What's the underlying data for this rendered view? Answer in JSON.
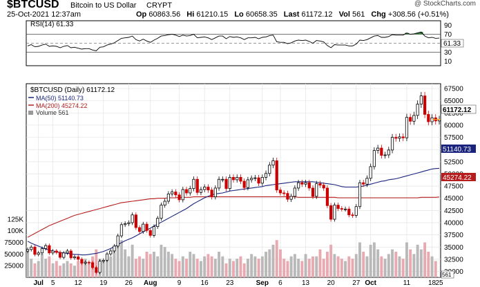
{
  "header": {
    "symbol": "$BTCUSD",
    "name": "Bitcoin to US Dollar",
    "exchange": "CRYPT",
    "date": "25-Oct-2021 12:37am",
    "watermark": "@ StockCharts.com",
    "open_label": "Op",
    "open_value": "60863.56",
    "high_label": "Hi",
    "high_value": "61210.15",
    "low_label": "Lo",
    "low_value": "60658.35",
    "last_label": "Last",
    "last_value": "61172.12",
    "vol_label": "Vol",
    "vol_value": "561",
    "chg_label": "Chg",
    "chg_value": "+308.56 (+0.51%)"
  },
  "rsi_panel": {
    "legend": "RSI(14) 61.33",
    "value_tag": "61.33",
    "levels": [
      70,
      50,
      30
    ],
    "ticks": [
      "90",
      "70",
      "50",
      "30",
      "10"
    ]
  },
  "price_panel": {
    "legend_main": "$BTCUSD (Daily) 61172.12",
    "legend_ma50": "MA(50) 51140.73",
    "legend_ma200": "MA(200) 45274.22",
    "legend_volume": "Volume 561",
    "tag_last": "61172.12",
    "tag_ma50": "51140.73",
    "tag_ma200": "45274.22",
    "tag_volume": "561",
    "price_ticks": [
      "67500",
      "65000",
      "62500",
      "60000",
      "57500",
      "55000",
      "52500",
      "50000",
      "47500",
      "45000",
      "42500",
      "40000",
      "37500",
      "35000",
      "32500",
      "30000"
    ],
    "volume_ticks": [
      "125K",
      "100K",
      "75000",
      "50000",
      "25000"
    ],
    "date_labels": [
      "Jul",
      "5",
      "12",
      "19",
      "26",
      "Aug",
      "9",
      "16",
      "23",
      "Sep",
      "6",
      "13",
      "20",
      "27",
      "Oct",
      "11",
      "18",
      "25"
    ]
  },
  "colors": {
    "up_candle": "#000000",
    "down_candle": "#cc0000",
    "ma50": "#1a237e",
    "ma200": "#b71c1c",
    "volume_up": "#b9b9b9",
    "volume_down": "#e8aab0",
    "rsi_line": "#000000",
    "rsi_fill": "#2e7d32"
  },
  "chart_data": {
    "type": "candlestick",
    "title": "$BTCUSD Bitcoin to US Dollar (Daily)",
    "x_start": "2021-06-28",
    "x_end": "2021-10-25",
    "ylim": [
      28800,
      68500
    ],
    "volume_ylim": [
      0,
      150000
    ],
    "rsi_ylim": [
      0,
      100
    ],
    "close_series": [
      34500,
      35000,
      33500,
      33800,
      34700,
      35300,
      33800,
      34200,
      33900,
      32900,
      33800,
      34200,
      32800,
      33000,
      32500,
      31700,
      31900,
      31800,
      30800,
      29800,
      32100,
      32300,
      33600,
      34200,
      35200,
      37300,
      39600,
      39800,
      40000,
      41600,
      39000,
      38200,
      39700,
      38400,
      37400,
      39200,
      40900,
      43600,
      44400,
      45900,
      46300,
      45700,
      44700,
      46800,
      46100,
      47000,
      48900,
      46200,
      46800,
      47300,
      46700,
      45300,
      47100,
      48900,
      48900,
      47000,
      49300,
      48800,
      49300,
      48500,
      47200,
      48800,
      49100,
      49200,
      48100,
      49300,
      50100,
      51800,
      52700,
      46700,
      46100,
      46000,
      44800,
      45400,
      47100,
      48200,
      47900,
      48200,
      47100,
      45400,
      48000,
      47700,
      47100,
      43500,
      40700,
      43600,
      42900,
      42800,
      42800,
      41600,
      41500,
      43300,
      48200,
      47900,
      49100,
      51500,
      54800,
      55300,
      53800,
      53900,
      54900,
      57500,
      57300,
      57600,
      57400,
      61600,
      60800,
      62000,
      64300,
      66000,
      62200,
      60700,
      61500,
      60860,
      61172
    ],
    "ma50_series": [
      36200,
      35800,
      35500,
      35200,
      34900,
      34600,
      34400,
      34200,
      34000,
      33900,
      33800,
      33700,
      33600,
      33500,
      33500,
      33400,
      33400,
      33500,
      33600,
      33700,
      33900,
      34100,
      34400,
      34700,
      35100,
      35500,
      35900,
      36300,
      36600,
      36900,
      37300,
      37700,
      38100,
      38500,
      38900,
      39300,
      39700,
      40100,
      40500,
      40900,
      41300,
      41700,
      42100,
      42500,
      42900,
      43400,
      43900,
      44300,
      44700,
      45100,
      45400,
      45700,
      45900,
      46000,
      46100,
      46300,
      46500,
      46600,
      46700,
      46800,
      46900,
      47000,
      47100,
      47200,
      47300,
      47400,
      47600,
      47700,
      47800,
      47900,
      48000,
      48100,
      48200,
      48300,
      48400,
      48400,
      48400,
      48400,
      48400,
      48400,
      48300,
      48200,
      48100,
      48000,
      47900,
      47800,
      47600,
      47400,
      47300,
      47300,
      47300,
      47300,
      47400,
      47500,
      47700,
      47900,
      48100,
      48300,
      48500,
      48600,
      48800,
      48900,
      49000,
      49200,
      49400,
      49600,
      49800,
      50000,
      50200,
      50400,
      50600,
      50800,
      51000,
      51100,
      51140
    ],
    "ma200_series": [
      37000,
      37400,
      37800,
      38200,
      38600,
      39000,
      39400,
      39700,
      40000,
      40300,
      40600,
      40900,
      41200,
      41500,
      41700,
      41900,
      42100,
      42300,
      42500,
      42700,
      42900,
      43100,
      43300,
      43500,
      43700,
      43900,
      44100,
      44200,
      44300,
      44400,
      44500,
      44600,
      44700,
      44800,
      44900,
      44900,
      45000,
      45000,
      45000,
      45100,
      45100,
      45100,
      45200,
      45200,
      45200,
      45200,
      45300,
      45300,
      45300,
      45300,
      45300,
      45300,
      45300,
      45300,
      45300,
      45300,
      45300,
      45300,
      45300,
      45300,
      45300,
      45300,
      45300,
      45300,
      45300,
      45300,
      45300,
      45300,
      45300,
      45300,
      45300,
      45300,
      45300,
      45300,
      45300,
      45200,
      45200,
      45200,
      45200,
      45200,
      45200,
      45200,
      45200,
      45200,
      45200,
      45200,
      45100,
      45100,
      45100,
      45100,
      45100,
      45100,
      45100,
      45100,
      45100,
      45100,
      45100,
      45100,
      45100,
      45100,
      45100,
      45100,
      45100,
      45100,
      45100,
      45100,
      45100,
      45100,
      45100,
      45200,
      45200,
      45200,
      45200,
      45200,
      45274
    ],
    "volume_series": [
      60000,
      40000,
      30000,
      35000,
      50000,
      40000,
      45000,
      30000,
      35000,
      25000,
      30000,
      35000,
      30000,
      25000,
      35000,
      30000,
      40000,
      30000,
      45000,
      60000,
      40000,
      35000,
      50000,
      45000,
      60000,
      70000,
      80000,
      60000,
      45000,
      70000,
      40000,
      45000,
      40000,
      55000,
      50000,
      55000,
      45000,
      70000,
      65000,
      55000,
      50000,
      40000,
      35000,
      45000,
      40000,
      55000,
      50000,
      40000,
      35000,
      45000,
      50000,
      45000,
      40000,
      55000,
      45000,
      30000,
      40000,
      35000,
      40000,
      45000,
      30000,
      40000,
      50000,
      45000,
      40000,
      45000,
      55000,
      60000,
      70000,
      80000,
      60000,
      40000,
      35000,
      45000,
      50000,
      40000,
      35000,
      50000,
      40000,
      45000,
      45000,
      60000,
      40000,
      55000,
      70000,
      50000,
      45000,
      40000,
      35000,
      45000,
      40000,
      50000,
      75000,
      55000,
      45000,
      70000,
      75000,
      60000,
      45000,
      40000,
      50000,
      60000,
      55000,
      45000,
      40000,
      75000,
      60000,
      50000,
      70000,
      60000,
      75000,
      55000,
      45000,
      35000,
      561
    ],
    "rsi_series": [
      44,
      47,
      42,
      43,
      46,
      48,
      43,
      44,
      43,
      40,
      43,
      45,
      40,
      41,
      39,
      37,
      38,
      38,
      35,
      33,
      41,
      42,
      46,
      48,
      51,
      56,
      61,
      62,
      63,
      66,
      58,
      55,
      59,
      55,
      52,
      57,
      61,
      66,
      67,
      69,
      70,
      68,
      65,
      68,
      66,
      67,
      70,
      62,
      63,
      64,
      62,
      58,
      62,
      66,
      66,
      60,
      65,
      63,
      64,
      62,
      58,
      62,
      62,
      63,
      60,
      63,
      64,
      67,
      68,
      53,
      52,
      52,
      49,
      51,
      55,
      57,
      56,
      57,
      54,
      50,
      56,
      55,
      53,
      45,
      40,
      47,
      46,
      46,
      46,
      44,
      44,
      48,
      57,
      56,
      58,
      62,
      66,
      67,
      63,
      63,
      65,
      69,
      68,
      68,
      68,
      73,
      70,
      71,
      73,
      75,
      66,
      62,
      63,
      61,
      61.33
    ],
    "rsi_levels": [
      70,
      50,
      30
    ]
  }
}
